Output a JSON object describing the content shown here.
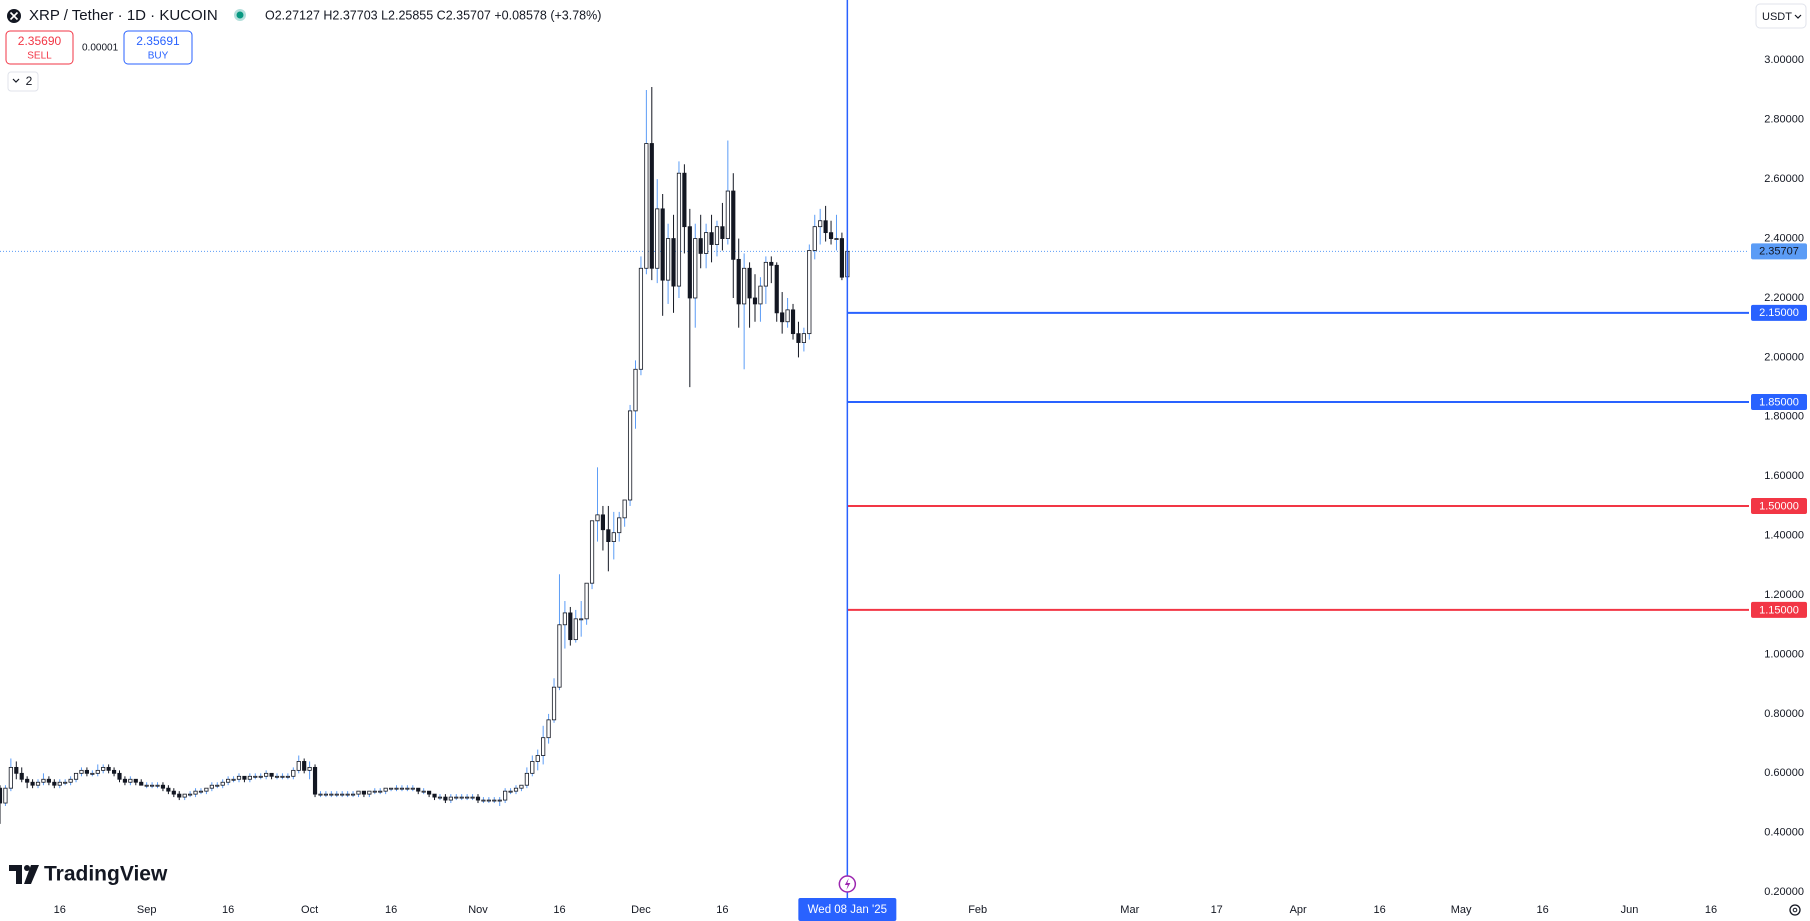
{
  "ui": {
    "legend": "O2.27127 H2.37703 L2.25855 C2.35707 +0.08578 (+3.78%)",
    "sell_price": "2.35690",
    "sell": "SELL",
    "spread": "0.00001",
    "buy_price": "2.35691",
    "buy": "BUY",
    "indicators": "2",
    "currency": "USDT",
    "logo": "TradingView"
  },
  "chart_data": {
    "type": "candlestick",
    "title": "XRP / Tether · 1D · KUCOIN",
    "x": [
      0,
      1,
      2,
      3,
      4,
      5,
      6,
      7,
      8,
      9,
      10,
      11,
      12,
      13,
      14,
      15,
      16,
      17,
      18,
      19,
      20,
      21,
      22,
      23,
      24,
      25,
      26,
      27,
      28,
      29,
      30,
      31,
      32,
      33,
      34,
      35,
      36,
      37,
      38,
      39,
      40,
      41,
      42,
      43,
      44,
      45,
      46,
      47,
      48,
      49,
      50,
      51,
      52,
      53,
      54,
      55,
      56,
      57,
      58,
      59,
      60,
      61,
      62,
      63,
      64,
      65,
      66,
      67,
      68,
      69,
      70,
      71,
      72,
      73,
      74,
      75,
      76,
      77,
      78,
      79,
      80,
      81,
      82,
      83,
      84,
      85,
      86,
      87,
      88,
      89,
      90,
      91,
      92,
      93,
      94,
      95,
      96,
      97,
      98,
      99,
      100,
      101,
      102,
      103,
      104,
      105,
      106,
      107,
      108,
      109,
      110,
      111,
      112,
      113,
      114,
      115,
      116,
      117,
      118,
      119,
      120,
      121,
      122,
      123,
      124,
      125,
      126,
      127,
      128,
      129,
      130,
      131,
      132,
      133,
      134,
      135,
      136,
      137,
      138,
      139,
      140,
      141,
      142,
      143,
      144,
      145,
      146,
      147,
      148,
      149,
      150,
      151,
      152,
      153,
      154,
      155,
      156
    ],
    "open": [
      0.55,
      0.5,
      0.55,
      0.62,
      0.6,
      0.58,
      0.57,
      0.56,
      0.57,
      0.58,
      0.57,
      0.56,
      0.57,
      0.57,
      0.58,
      0.6,
      0.61,
      0.6,
      0.6,
      0.61,
      0.62,
      0.61,
      0.6,
      0.58,
      0.57,
      0.58,
      0.57,
      0.56,
      0.56,
      0.56,
      0.56,
      0.55,
      0.54,
      0.53,
      0.52,
      0.53,
      0.53,
      0.54,
      0.54,
      0.55,
      0.56,
      0.56,
      0.57,
      0.58,
      0.58,
      0.59,
      0.58,
      0.59,
      0.59,
      0.59,
      0.6,
      0.59,
      0.59,
      0.59,
      0.59,
      0.61,
      0.64,
      0.61,
      0.62,
      0.53,
      0.53,
      0.53,
      0.53,
      0.53,
      0.53,
      0.53,
      0.53,
      0.54,
      0.53,
      0.54,
      0.54,
      0.54,
      0.55,
      0.55,
      0.55,
      0.55,
      0.55,
      0.55,
      0.54,
      0.54,
      0.53,
      0.52,
      0.52,
      0.51,
      0.52,
      0.52,
      0.52,
      0.52,
      0.52,
      0.51,
      0.51,
      0.51,
      0.51,
      0.51,
      0.54,
      0.54,
      0.55,
      0.56,
      0.6,
      0.64,
      0.66,
      0.72,
      0.78,
      0.89,
      1.1,
      1.14,
      1.05,
      1.12,
      1.12,
      1.24,
      1.45,
      1.47,
      1.42,
      1.38,
      1.41,
      1.46,
      1.52,
      1.82,
      1.96,
      2.3,
      2.72,
      2.3,
      2.5,
      2.26,
      2.4,
      2.24,
      2.62,
      2.44,
      2.2,
      2.4,
      2.35,
      2.42,
      2.38,
      2.44,
      2.4,
      2.56,
      2.33,
      2.18,
      2.3,
      2.2,
      2.18,
      2.24,
      2.32,
      2.31,
      2.15,
      2.12,
      2.16,
      2.08,
      2.05,
      2.08,
      2.36,
      2.44,
      2.46,
      2.42,
      2.4,
      2.4,
      2.27127
    ],
    "high": [
      0.56,
      0.56,
      0.65,
      0.64,
      0.62,
      0.59,
      0.58,
      0.58,
      0.6,
      0.59,
      0.58,
      0.58,
      0.58,
      0.59,
      0.6,
      0.62,
      0.62,
      0.61,
      0.63,
      0.63,
      0.63,
      0.62,
      0.61,
      0.59,
      0.59,
      0.58,
      0.58,
      0.57,
      0.57,
      0.57,
      0.57,
      0.56,
      0.55,
      0.54,
      0.53,
      0.54,
      0.55,
      0.55,
      0.55,
      0.57,
      0.57,
      0.58,
      0.59,
      0.59,
      0.6,
      0.59,
      0.6,
      0.6,
      0.6,
      0.61,
      0.6,
      0.6,
      0.6,
      0.6,
      0.62,
      0.66,
      0.65,
      0.64,
      0.63,
      0.54,
      0.54,
      0.54,
      0.54,
      0.54,
      0.54,
      0.54,
      0.54,
      0.54,
      0.54,
      0.55,
      0.55,
      0.55,
      0.55,
      0.56,
      0.56,
      0.56,
      0.56,
      0.55,
      0.55,
      0.54,
      0.53,
      0.53,
      0.53,
      0.53,
      0.53,
      0.53,
      0.53,
      0.53,
      0.53,
      0.52,
      0.52,
      0.52,
      0.52,
      0.55,
      0.55,
      0.56,
      0.56,
      0.62,
      0.66,
      0.68,
      0.76,
      0.8,
      0.92,
      1.27,
      1.18,
      1.16,
      1.15,
      1.18,
      1.24,
      1.45,
      1.63,
      1.5,
      1.5,
      1.48,
      1.48,
      1.52,
      1.84,
      1.99,
      2.34,
      2.9,
      2.91,
      2.6,
      2.55,
      2.45,
      2.48,
      2.66,
      2.65,
      2.5,
      2.45,
      2.48,
      2.45,
      2.48,
      2.46,
      2.52,
      2.73,
      2.62,
      2.4,
      2.35,
      2.32,
      2.28,
      2.27,
      2.34,
      2.34,
      2.32,
      2.22,
      2.2,
      2.18,
      2.12,
      2.1,
      2.38,
      2.48,
      2.5,
      2.51,
      2.46,
      2.48,
      2.42,
      2.37703
    ],
    "low": [
      0.43,
      0.49,
      0.54,
      0.58,
      0.57,
      0.55,
      0.55,
      0.55,
      0.56,
      0.56,
      0.55,
      0.55,
      0.56,
      0.56,
      0.57,
      0.59,
      0.59,
      0.59,
      0.59,
      0.6,
      0.6,
      0.59,
      0.57,
      0.56,
      0.56,
      0.56,
      0.56,
      0.55,
      0.55,
      0.55,
      0.54,
      0.53,
      0.52,
      0.51,
      0.51,
      0.52,
      0.52,
      0.53,
      0.53,
      0.54,
      0.55,
      0.55,
      0.56,
      0.57,
      0.57,
      0.57,
      0.57,
      0.58,
      0.58,
      0.58,
      0.58,
      0.58,
      0.58,
      0.58,
      0.58,
      0.6,
      0.6,
      0.58,
      0.52,
      0.52,
      0.52,
      0.52,
      0.52,
      0.52,
      0.52,
      0.52,
      0.52,
      0.52,
      0.52,
      0.53,
      0.53,
      0.53,
      0.54,
      0.54,
      0.54,
      0.54,
      0.54,
      0.53,
      0.53,
      0.52,
      0.51,
      0.51,
      0.5,
      0.5,
      0.51,
      0.51,
      0.51,
      0.51,
      0.5,
      0.5,
      0.5,
      0.5,
      0.49,
      0.5,
      0.53,
      0.53,
      0.54,
      0.55,
      0.59,
      0.61,
      0.63,
      0.7,
      0.77,
      0.88,
      1.02,
      1.03,
      1.04,
      1.06,
      1.1,
      1.22,
      1.38,
      1.35,
      1.28,
      1.32,
      1.38,
      1.43,
      1.5,
      1.76,
      1.94,
      2.28,
      2.26,
      2.25,
      2.14,
      2.18,
      2.15,
      2.2,
      2.35,
      1.9,
      2.1,
      2.3,
      2.3,
      2.32,
      2.34,
      2.36,
      2.38,
      2.2,
      2.1,
      1.96,
      2.1,
      2.12,
      2.12,
      2.18,
      2.25,
      2.12,
      2.08,
      2.1,
      2.06,
      2.0,
      2.02,
      2.06,
      2.33,
      2.38,
      2.39,
      2.38,
      2.36,
      2.26,
      2.25855
    ],
    "close": [
      0.5,
      0.55,
      0.62,
      0.6,
      0.58,
      0.57,
      0.56,
      0.57,
      0.58,
      0.57,
      0.56,
      0.57,
      0.57,
      0.58,
      0.6,
      0.61,
      0.6,
      0.6,
      0.61,
      0.62,
      0.61,
      0.6,
      0.58,
      0.57,
      0.58,
      0.57,
      0.56,
      0.56,
      0.56,
      0.56,
      0.55,
      0.54,
      0.53,
      0.52,
      0.53,
      0.53,
      0.54,
      0.54,
      0.55,
      0.56,
      0.56,
      0.57,
      0.58,
      0.58,
      0.59,
      0.58,
      0.59,
      0.59,
      0.59,
      0.6,
      0.59,
      0.59,
      0.59,
      0.59,
      0.61,
      0.64,
      0.61,
      0.62,
      0.53,
      0.53,
      0.53,
      0.53,
      0.53,
      0.53,
      0.53,
      0.53,
      0.54,
      0.53,
      0.54,
      0.54,
      0.54,
      0.55,
      0.55,
      0.55,
      0.55,
      0.55,
      0.55,
      0.54,
      0.54,
      0.53,
      0.52,
      0.52,
      0.51,
      0.52,
      0.52,
      0.52,
      0.52,
      0.52,
      0.51,
      0.51,
      0.51,
      0.51,
      0.51,
      0.54,
      0.54,
      0.55,
      0.56,
      0.6,
      0.64,
      0.66,
      0.72,
      0.78,
      0.89,
      1.1,
      1.14,
      1.05,
      1.12,
      1.12,
      1.24,
      1.45,
      1.47,
      1.42,
      1.38,
      1.41,
      1.46,
      1.52,
      1.82,
      1.96,
      2.3,
      2.72,
      2.3,
      2.5,
      2.26,
      2.4,
      2.24,
      2.62,
      2.44,
      2.2,
      2.4,
      2.35,
      2.42,
      2.38,
      2.44,
      2.4,
      2.56,
      2.33,
      2.18,
      2.3,
      2.2,
      2.18,
      2.24,
      2.32,
      2.31,
      2.15,
      2.12,
      2.16,
      2.08,
      2.05,
      2.08,
      2.36,
      2.44,
      2.46,
      2.42,
      2.4,
      2.4,
      2.27,
      2.35707
    ],
    "xlim": [
      0,
      322
    ],
    "ylim": [
      0.177,
      3.203
    ],
    "xticks": [
      {
        "value": 11,
        "label": "16"
      },
      {
        "value": 27,
        "label": "Sep"
      },
      {
        "value": 42,
        "label": "16"
      },
      {
        "value": 57,
        "label": "Oct"
      },
      {
        "value": 72,
        "label": "16"
      },
      {
        "value": 88,
        "label": "Nov"
      },
      {
        "value": 103,
        "label": "16"
      },
      {
        "value": 118,
        "label": "Dec"
      },
      {
        "value": 133,
        "label": "16"
      },
      {
        "value": 180,
        "label": "Feb"
      },
      {
        "value": 208,
        "label": "Mar"
      },
      {
        "value": 224,
        "label": "17"
      },
      {
        "value": 239,
        "label": "Apr"
      },
      {
        "value": 254,
        "label": "16"
      },
      {
        "value": 269,
        "label": "May"
      },
      {
        "value": 284,
        "label": "16"
      },
      {
        "value": 300,
        "label": "Jun"
      },
      {
        "value": 315,
        "label": "16"
      }
    ],
    "yticks": [
      {
        "value": 0.2,
        "label": "0.20000"
      },
      {
        "value": 0.4,
        "label": "0.40000"
      },
      {
        "value": 0.6,
        "label": "0.60000"
      },
      {
        "value": 0.8,
        "label": "0.80000"
      },
      {
        "value": 1,
        "label": "1.00000"
      },
      {
        "value": 1.2,
        "label": "1.20000"
      },
      {
        "value": 1.4,
        "label": "1.40000"
      },
      {
        "value": 1.6,
        "label": "1.60000"
      },
      {
        "value": 1.8,
        "label": "1.80000"
      },
      {
        "value": 2,
        "label": "2.00000"
      },
      {
        "value": 2.2,
        "label": "2.20000"
      },
      {
        "value": 2.4,
        "label": "2.40000"
      },
      {
        "value": 2.6,
        "label": "2.60000"
      },
      {
        "value": 2.8,
        "label": "2.80000"
      },
      {
        "value": 3,
        "label": "3.00000"
      }
    ],
    "grid": false,
    "candle_colors": {
      "up_body": "#ffffff",
      "down_body": "#131722",
      "border": "#131722",
      "up_wick": "#5b9cf6",
      "down_wick": "#131722"
    },
    "last_price": {
      "value": 2.35707,
      "label": "2.35707",
      "color": "#5b9cf6"
    },
    "hlines": [
      {
        "value": 2.15,
        "label": "2.15000",
        "color": "#2962ff"
      },
      {
        "value": 1.85,
        "label": "1.85000",
        "color": "#2962ff"
      },
      {
        "value": 1.5,
        "label": "1.50000",
        "color": "#f23645"
      },
      {
        "value": 1.15,
        "label": "1.15000",
        "color": "#f23645"
      }
    ],
    "vline": {
      "x": 156,
      "label": "Wed 08 Jan '25",
      "color": "#2962ff"
    }
  }
}
